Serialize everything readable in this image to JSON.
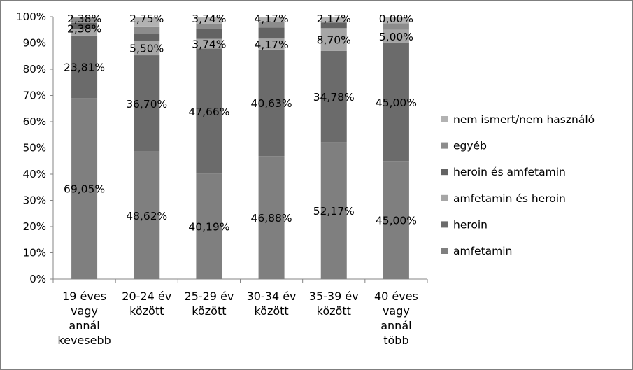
{
  "chart_data": {
    "type": "bar",
    "stacked": true,
    "percent_stacked": true,
    "categories": [
      [
        "19 éves",
        "vagy",
        "annál",
        "kevesebb"
      ],
      [
        "20-24 év",
        "között"
      ],
      [
        "25-29 év",
        "között"
      ],
      [
        "30-34 év",
        "között"
      ],
      [
        "35-39 év",
        "között"
      ],
      [
        "40 éves",
        "vagy",
        "annál",
        "több"
      ]
    ],
    "series": [
      {
        "name": "amfetamin",
        "color": "#7f7f7f",
        "values": [
          69.05,
          48.62,
          40.19,
          46.88,
          52.17,
          45.0
        ],
        "labels": [
          "69,05%",
          "48,62%",
          "40,19%",
          "46,88%",
          "52,17%",
          "45,00%"
        ]
      },
      {
        "name": "heroin",
        "color": "#6b6b6b",
        "values": [
          23.81,
          36.7,
          47.66,
          40.63,
          34.78,
          45.0
        ],
        "labels": [
          "23,81%",
          "36,70%",
          "47,66%",
          "40,63%",
          "34,78%",
          "45,00%"
        ]
      },
      {
        "name": "amfetamin és heroin",
        "color": "#a6a6a6",
        "values": [
          2.38,
          5.5,
          3.74,
          4.17,
          8.7,
          5.0
        ],
        "labels": [
          "2,38%",
          "5,50%",
          "3,74%",
          "4,17%",
          "8,70%",
          "5,00%"
        ]
      },
      {
        "name": "heroin és amfetamin",
        "color": "#636363",
        "values": [
          2.38,
          2.75,
          3.74,
          4.17,
          2.17,
          0.0
        ],
        "labels": [
          "2,38%",
          "2,75%",
          "3,74%",
          "4,17%",
          "2,17%",
          "0,00%"
        ]
      },
      {
        "name": "egyéb",
        "color": "#8c8c8c",
        "values": [
          2.38,
          2.75,
          1.87,
          2.08,
          0.0,
          2.5
        ],
        "labels": []
      },
      {
        "name": "nem ismert/nem használó",
        "color": "#b2b2b2",
        "values": [
          0.0,
          3.68,
          2.8,
          2.07,
          2.18,
          2.5
        ],
        "labels": []
      }
    ],
    "ylim": [
      0,
      100
    ],
    "yticks": [
      "0%",
      "10%",
      "20%",
      "30%",
      "40%",
      "50%",
      "60%",
      "70%",
      "80%",
      "90%",
      "100%"
    ],
    "legend_position": "right",
    "grid": false
  }
}
